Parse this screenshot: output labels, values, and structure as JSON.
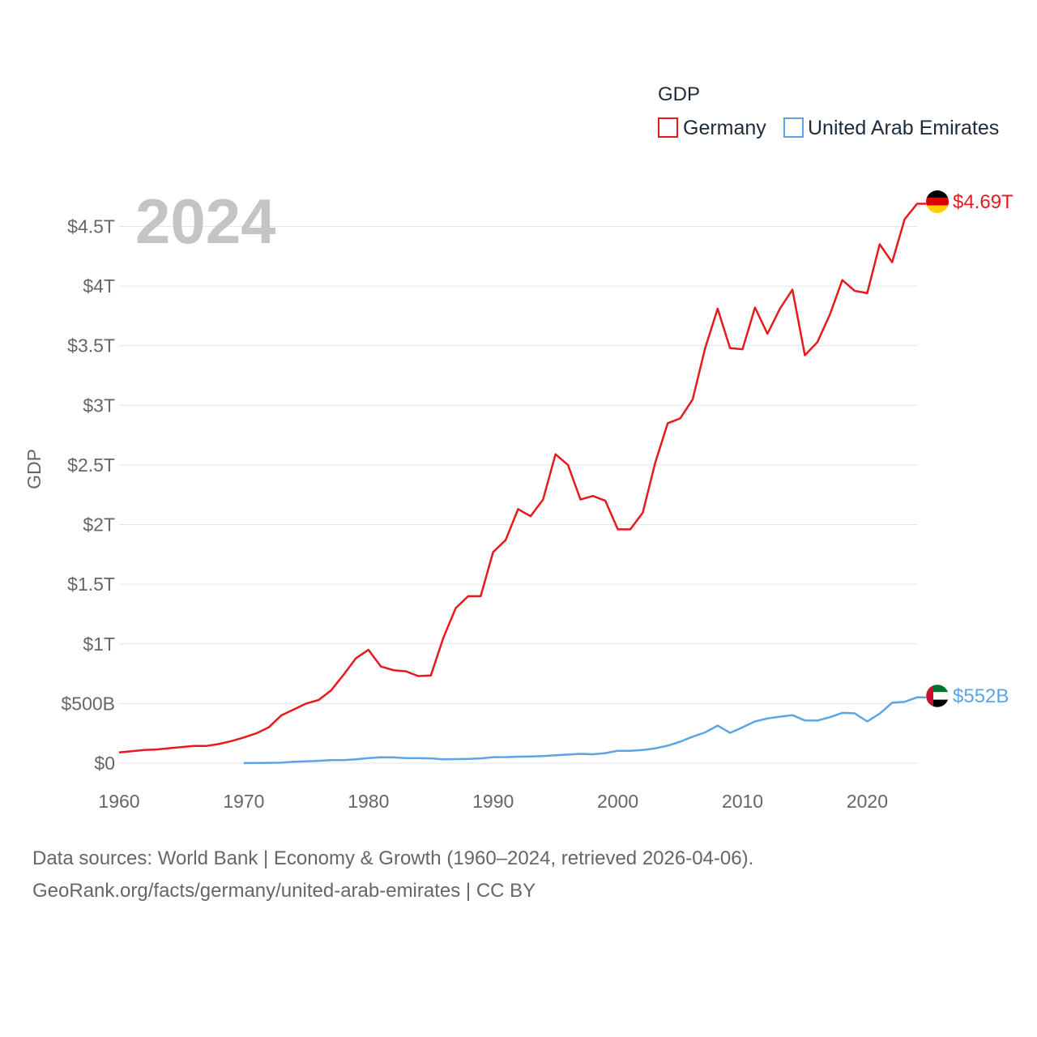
{
  "chart_data": {
    "type": "line",
    "year_display": "2024",
    "ylabel": "GDP",
    "xlabel": "",
    "ylim": [
      0,
      4.7
    ],
    "xlim": [
      1960,
      2024
    ],
    "y_ticks": [
      {
        "value": 0,
        "label": "$0"
      },
      {
        "value": 0.5,
        "label": "$500B"
      },
      {
        "value": 1,
        "label": "$1T"
      },
      {
        "value": 1.5,
        "label": "$1.5T"
      },
      {
        "value": 2,
        "label": "$2T"
      },
      {
        "value": 2.5,
        "label": "$2.5T"
      },
      {
        "value": 3,
        "label": "$3T"
      },
      {
        "value": 3.5,
        "label": "$3.5T"
      },
      {
        "value": 4,
        "label": "$4T"
      },
      {
        "value": 4.5,
        "label": "$4.5T"
      }
    ],
    "x_ticks": [
      {
        "value": 1960,
        "label": "1960"
      },
      {
        "value": 1970,
        "label": "1970"
      },
      {
        "value": 1980,
        "label": "1980"
      },
      {
        "value": 1990,
        "label": "1990"
      },
      {
        "value": 2000,
        "label": "2000"
      },
      {
        "value": 2010,
        "label": "2010"
      },
      {
        "value": 2020,
        "label": "2020"
      }
    ],
    "legend": {
      "title": "GDP",
      "position": "top-right"
    },
    "series": [
      {
        "name": "Germany",
        "color": "#e8191c",
        "flag": "germany-flag",
        "end_label": "$4.69T",
        "x": [
          1960,
          1961,
          1962,
          1963,
          1964,
          1965,
          1966,
          1967,
          1968,
          1969,
          1970,
          1971,
          1972,
          1973,
          1974,
          1975,
          1976,
          1977,
          1978,
          1979,
          1980,
          1981,
          1982,
          1983,
          1984,
          1985,
          1986,
          1987,
          1988,
          1989,
          1990,
          1991,
          1992,
          1993,
          1994,
          1995,
          1996,
          1997,
          1998,
          1999,
          2000,
          2001,
          2002,
          2003,
          2004,
          2005,
          2006,
          2007,
          2008,
          2009,
          2010,
          2011,
          2012,
          2013,
          2014,
          2015,
          2016,
          2017,
          2018,
          2019,
          2020,
          2021,
          2022,
          2023,
          2024
        ],
        "values": [
          0.09,
          0.1,
          0.11,
          0.115,
          0.125,
          0.135,
          0.145,
          0.145,
          0.16,
          0.185,
          0.215,
          0.25,
          0.3,
          0.4,
          0.45,
          0.5,
          0.53,
          0.61,
          0.74,
          0.88,
          0.95,
          0.81,
          0.78,
          0.77,
          0.73,
          0.735,
          1.05,
          1.3,
          1.4,
          1.4,
          1.77,
          1.87,
          2.13,
          2.07,
          2.21,
          2.59,
          2.5,
          2.21,
          2.24,
          2.2,
          1.96,
          1.96,
          2.1,
          2.52,
          2.85,
          2.89,
          3.05,
          3.48,
          3.81,
          3.48,
          3.47,
          3.82,
          3.6,
          3.81,
          3.97,
          3.42,
          3.53,
          3.76,
          4.05,
          3.96,
          3.94,
          4.35,
          4.2,
          4.56,
          4.69
        ]
      },
      {
        "name": "United Arab Emirates",
        "color": "#5ba4e6",
        "flag": "uae-flag",
        "end_label": "$552B",
        "x": [
          1970,
          1971,
          1972,
          1973,
          1974,
          1975,
          1976,
          1977,
          1978,
          1979,
          1980,
          1981,
          1982,
          1983,
          1984,
          1985,
          1986,
          1987,
          1988,
          1989,
          1990,
          1991,
          1992,
          1993,
          1994,
          1995,
          1996,
          1997,
          1998,
          1999,
          2000,
          2001,
          2002,
          2003,
          2004,
          2005,
          2006,
          2007,
          2008,
          2009,
          2010,
          2011,
          2012,
          2013,
          2014,
          2015,
          2016,
          2017,
          2018,
          2019,
          2020,
          2021,
          2022,
          2023,
          2024
        ],
        "values": [
          0.001,
          0.002,
          0.003,
          0.004,
          0.012,
          0.015,
          0.02,
          0.025,
          0.026,
          0.032,
          0.043,
          0.049,
          0.048,
          0.043,
          0.042,
          0.04,
          0.032,
          0.034,
          0.035,
          0.04,
          0.05,
          0.051,
          0.054,
          0.056,
          0.059,
          0.066,
          0.072,
          0.078,
          0.075,
          0.084,
          0.104,
          0.103,
          0.11,
          0.124,
          0.147,
          0.18,
          0.222,
          0.258,
          0.315,
          0.254,
          0.3,
          0.35,
          0.375,
          0.39,
          0.403,
          0.358,
          0.357,
          0.385,
          0.422,
          0.418,
          0.35,
          0.415,
          0.507,
          0.514,
          0.552
        ]
      }
    ]
  },
  "source": {
    "line1": "Data sources: World Bank | Economy & Growth (1960–2024, retrieved 2026-04-06).",
    "line2": "GeoRank.org/facts/germany/united-arab-emirates | CC BY"
  }
}
